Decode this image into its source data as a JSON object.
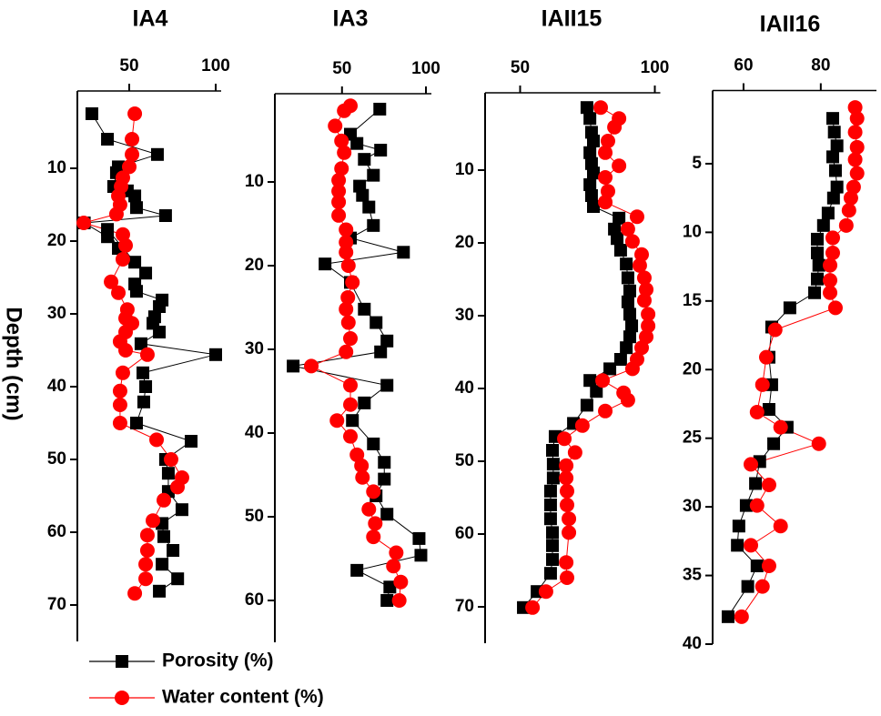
{
  "chart_data": [
    {
      "type": "scatter",
      "title": "IA4",
      "xlim": [
        20,
        100
      ],
      "xticks": [
        50,
        100
      ],
      "ylim": [
        0,
        75
      ],
      "yticks": [
        10,
        20,
        30,
        40,
        50,
        60,
        70
      ],
      "invert_y": true,
      "series": [
        {
          "name": "Porosity (%)",
          "color": "#000000",
          "marker": "square",
          "x": [
            28.4,
            37.4,
            66.3,
            43.7,
            42.6,
            41,
            48.9,
            53.2,
            54.2,
            71,
            24,
            37.4,
            43.7,
            37.4,
            53.2,
            59.5,
            53.2,
            54.2,
            69,
            67.4,
            64.7,
            63.7,
            67.4,
            56.8,
            100,
            57.9,
            59.5,
            58.4,
            54.2,
            85.8,
            71,
            72.6,
            72.6,
            80.5,
            69,
            70,
            75.3,
            69,
            78,
            67.4
          ],
          "y": [
            2.5,
            6,
            8.1,
            9.8,
            10.6,
            12.5,
            13.1,
            13.8,
            15.4,
            16.5,
            17.5,
            19.4,
            21,
            18.4,
            22.9,
            24.4,
            25.9,
            26.9,
            28.1,
            29,
            30.4,
            31.3,
            32.5,
            34.1,
            35.6,
            38.1,
            40,
            42.1,
            45,
            47.5,
            50,
            51.9,
            54.4,
            56.9,
            58.8,
            60.6,
            62.5,
            64.4,
            66.4,
            68.1
          ]
        },
        {
          "name": "Water content (%)",
          "color": "#ff0000",
          "marker": "circle",
          "x": [
            53.2,
            51.6,
            51.6,
            50,
            46.3,
            45.3,
            43.7,
            44.7,
            42.6,
            23.7,
            46.3,
            47.9,
            46.3,
            39.5,
            43.7,
            48.9,
            47.9,
            51.6,
            47.9,
            44.7,
            47.9,
            60.5,
            46.3,
            44.7,
            44.7,
            44.7,
            65.8,
            74.2,
            80.5,
            77.9,
            70,
            63.7,
            60.5,
            60.5,
            59.5,
            59.5,
            53.2
          ],
          "y": [
            2.5,
            6,
            8.1,
            9.8,
            11.3,
            12.5,
            13.8,
            15,
            16.3,
            17.5,
            19.1,
            20.6,
            22.5,
            25.6,
            27.1,
            29.4,
            30.6,
            31.3,
            32.5,
            33.8,
            35,
            35.6,
            38.1,
            40.6,
            42.5,
            45,
            47.3,
            50,
            52.5,
            53.8,
            55.6,
            58.4,
            60.4,
            62.5,
            64.4,
            66.4,
            68.4
          ]
        }
      ]
    },
    {
      "type": "scatter",
      "title": "IA3",
      "xlim": [
        10,
        100
      ],
      "xticks": [
        50,
        100
      ],
      "ylim": [
        0,
        65
      ],
      "yticks": [
        10,
        20,
        30,
        40,
        50,
        60
      ],
      "invert_y": true,
      "series": [
        {
          "color": "#000000",
          "marker": "square",
          "x": [
            72.5,
            55,
            58.9,
            73,
            63.3,
            68.7,
            60.5,
            62.2,
            66,
            68.7,
            55,
            86.6,
            39.9,
            55,
            63.3,
            70.3,
            76.8,
            73,
            20.9,
            76.8,
            63.3,
            56.2,
            68.7,
            75.2,
            75.2,
            70.3,
            76.8,
            95.9,
            97,
            58.9,
            78.5,
            76.8
          ],
          "y": [
            1.3,
            4.3,
            5.4,
            6.2,
            7.3,
            9.2,
            10.5,
            11.6,
            13,
            15.2,
            16.7,
            18.4,
            19.8,
            22,
            25.2,
            26.8,
            29,
            30.3,
            32,
            34.3,
            36.4,
            38.5,
            41.3,
            43.5,
            45.5,
            47.5,
            49.7,
            52.6,
            54.6,
            56.4,
            58.4,
            60
          ]
        },
        {
          "color": "#ff0000",
          "marker": "circle",
          "x": [
            55,
            51.3,
            45.9,
            49.7,
            51.3,
            49.7,
            48,
            48,
            48,
            48,
            52.4,
            52.4,
            52.4,
            53.8,
            56.2,
            53.5,
            52.4,
            53.8,
            55,
            52.4,
            31.7,
            55,
            55,
            47,
            55,
            58.9,
            61.6,
            62.2,
            68.7,
            66,
            69.8,
            68.7,
            82.3,
            80.6,
            85,
            84.1
          ],
          "y": [
            0.9,
            1.5,
            3.3,
            5.1,
            6.5,
            8.4,
            9.8,
            11.1,
            12.4,
            14,
            15.7,
            17.2,
            18.4,
            20,
            22,
            23.8,
            25.2,
            26.8,
            28.7,
            30.3,
            32,
            34.3,
            36.6,
            38.5,
            40.4,
            42.6,
            43.9,
            45.3,
            47,
            49.1,
            50.8,
            52.4,
            54.3,
            55.9,
            57.8,
            60
          ]
        }
      ]
    },
    {
      "type": "scatter",
      "title": "IAII15",
      "xlim": [
        37,
        100
      ],
      "xticks": [
        50,
        100
      ],
      "ylim": [
        0,
        75
      ],
      "yticks": [
        10,
        20,
        30,
        40,
        50,
        60,
        70
      ],
      "invert_y": true,
      "series": [
        {
          "color": "#000000",
          "marker": "square",
          "x": [
            74.8,
            75.9,
            76.5,
            77.2,
            75.9,
            76.5,
            77.2,
            75.9,
            76.5,
            77.2,
            86.7,
            85,
            86,
            87.3,
            89.4,
            90,
            90.7,
            90,
            90.7,
            91.4,
            90.7,
            89.4,
            87.3,
            83.3,
            75.9,
            78.3,
            74.8,
            69.8,
            63,
            62,
            62.3,
            62.3,
            61.3,
            61.3,
            61.3,
            62,
            62,
            62,
            61.3,
            56.3,
            51.2
          ],
          "y": [
            1.4,
            2.9,
            4.8,
            6,
            7.6,
            9.1,
            10.4,
            12,
            13.5,
            15,
            16.6,
            18.1,
            19.4,
            21,
            22.9,
            24.8,
            26.6,
            28.1,
            29.8,
            31.4,
            32.9,
            34.4,
            36,
            37.3,
            38.9,
            40.4,
            42.3,
            44.8,
            46.6,
            48.5,
            50.4,
            52.3,
            54.1,
            56,
            57.9,
            59.8,
            61.6,
            63.5,
            65.4,
            67.9,
            70.1
          ]
        },
        {
          "color": "#ff0000",
          "marker": "circle",
          "x": [
            79.9,
            86.7,
            85,
            82.6,
            81.6,
            86.7,
            81.6,
            82.6,
            81.6,
            93.4,
            90,
            91.7,
            95.1,
            94.4,
            96.1,
            96.8,
            96.1,
            97.5,
            97.5,
            96.8,
            95.1,
            93.4,
            91.7,
            80.6,
            88.4,
            90,
            81.6,
            73.1,
            66.4,
            70.4,
            67.1,
            67.1,
            67.4,
            67.4,
            68.1,
            68.1,
            67.1,
            67.4,
            59.6,
            54.6
          ],
          "y": [
            1.4,
            2.9,
            4.1,
            6,
            7.6,
            9.4,
            11,
            12.9,
            14.4,
            16.4,
            18.1,
            19.8,
            21.6,
            23.1,
            24.8,
            26.4,
            27.9,
            29.8,
            31.4,
            32.9,
            34.4,
            36,
            37.3,
            38.9,
            40.6,
            41.6,
            43.1,
            45.1,
            46.9,
            48.8,
            50.6,
            52.3,
            54.1,
            56,
            57.9,
            59.8,
            63.9,
            66,
            67.9,
            70.1
          ]
        }
      ]
    },
    {
      "type": "scatter",
      "title": "IAII16",
      "xlim": [
        52,
        93
      ],
      "xticks": [
        60,
        80
      ],
      "ylim": [
        0,
        40
      ],
      "yticks": [
        5,
        10,
        15,
        20,
        25,
        30,
        35,
        40
      ],
      "invert_y": true,
      "series": [
        {
          "color": "#000000",
          "marker": "square",
          "x": [
            83.1,
            83.5,
            84.2,
            83.1,
            83.8,
            84.2,
            83.3,
            81.9,
            80.7,
            79.1,
            79.1,
            79.5,
            79.1,
            78.4,
            72,
            67.3,
            66.6,
            67.3,
            66.6,
            71.3,
            67.8,
            64.2,
            63.1,
            60.7,
            58.8,
            58.4,
            63.5,
            61.1,
            56
          ],
          "y": [
            1.7,
            2.7,
            3.7,
            4.5,
            5.5,
            6.7,
            7.5,
            8.6,
            9.5,
            10.5,
            11.5,
            12.4,
            13.4,
            14.4,
            15.5,
            16.9,
            19.1,
            21.1,
            22.9,
            24.2,
            25.4,
            26.7,
            28.3,
            29.9,
            31.4,
            32.8,
            34.3,
            35.8,
            38
          ]
        },
        {
          "color": "#ff0000",
          "marker": "circle",
          "x": [
            88.9,
            89.4,
            88.9,
            89.4,
            88.9,
            89.4,
            88.5,
            87.8,
            87.3,
            86.6,
            83.1,
            83.1,
            82.4,
            82.4,
            82.4,
            83.8,
            68.2,
            65.9,
            64.9,
            63.5,
            69.6,
            79.5,
            61.9,
            66.6,
            63.5,
            69.6,
            61.9,
            66.6,
            64.9,
            59.5
          ],
          "y": [
            0.9,
            1.7,
            2.7,
            3.8,
            4.7,
            5.7,
            6.7,
            7.5,
            8.4,
            9.5,
            10.4,
            11.5,
            12.4,
            13.5,
            14.4,
            15.5,
            17.1,
            19.1,
            21.1,
            23.1,
            24.2,
            25.4,
            26.9,
            28.4,
            29.9,
            31.4,
            32.8,
            34.3,
            35.8,
            38
          ]
        }
      ]
    }
  ],
  "y_axis_label": "Depth (cm)"
}
